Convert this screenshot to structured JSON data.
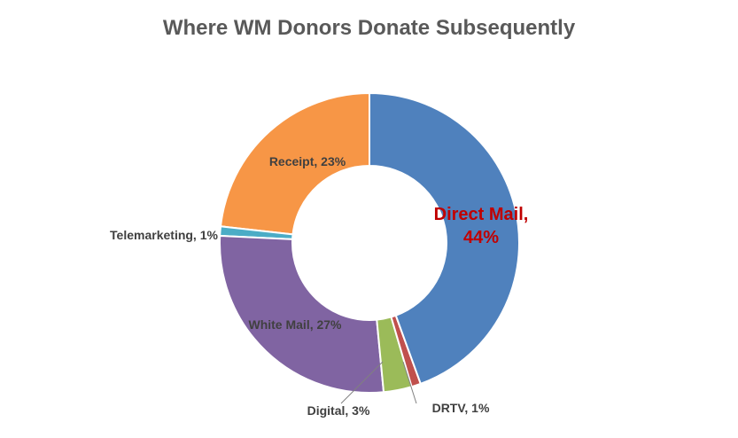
{
  "chart_data": {
    "type": "donut",
    "title": "Where WM Donors Donate Subsequently",
    "values": [
      44,
      1,
      3,
      27,
      1,
      23
    ],
    "value_labels": [
      "Direct Mail, 44%",
      "DRTV, 1%",
      "Digital, 3%",
      "White Mail, 27%",
      "Telemarketing, 1%",
      "Receipt, 23%"
    ],
    "colors": [
      "#4f81bd",
      "#c0504d",
      "#9bbb59",
      "#8064a2",
      "#4bacc6",
      "#f79646"
    ]
  }
}
